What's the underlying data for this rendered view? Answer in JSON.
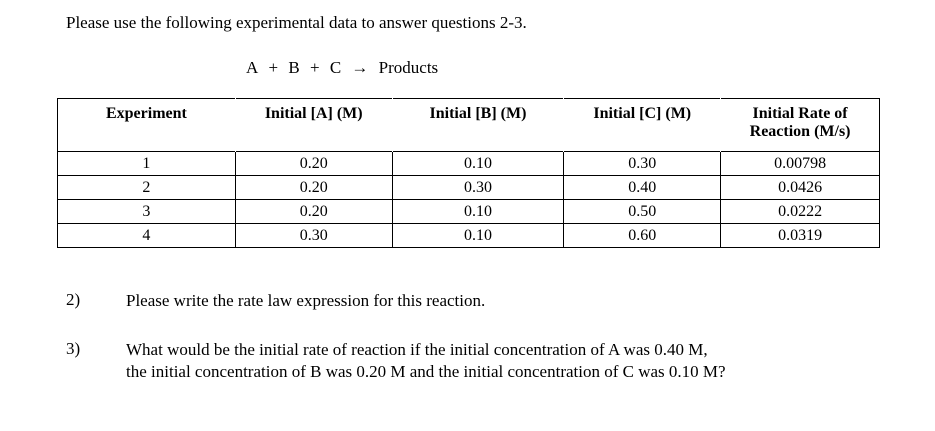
{
  "intro": "Please use the following experimental data to answer questions 2-3.",
  "reaction": {
    "A": "A",
    "plus1": "+",
    "B": "B",
    "plus2": "+",
    "C": "C",
    "arrow": "→",
    "products": "Products"
  },
  "table": {
    "headers": {
      "experiment": "Experiment",
      "a": "Initial [A] (M)",
      "b": "Initial [B] (M)",
      "c": "Initial [C] (M)",
      "rate_line1": "Initial Rate of",
      "rate_line2": "Reaction (M/s)"
    },
    "rows": [
      {
        "exp": "1",
        "a": "0.20",
        "b": "0.10",
        "c": "0.30",
        "rate": "0.00798"
      },
      {
        "exp": "2",
        "a": "0.20",
        "b": "0.30",
        "c": "0.40",
        "rate": "0.0426"
      },
      {
        "exp": "3",
        "a": "0.20",
        "b": "0.10",
        "c": "0.50",
        "rate": "0.0222"
      },
      {
        "exp": "4",
        "a": "0.30",
        "b": "0.10",
        "c": "0.60",
        "rate": "0.0319"
      }
    ]
  },
  "questions": [
    {
      "num": "2)",
      "line1": "Please write the rate law expression for this reaction.",
      "line2": ""
    },
    {
      "num": "3)",
      "line1": "What would be the initial rate of reaction if the initial concentration of A was 0.40 M,",
      "line2": "the initial concentration of B was 0.20 M and the initial concentration of C was 0.10 M?"
    }
  ]
}
